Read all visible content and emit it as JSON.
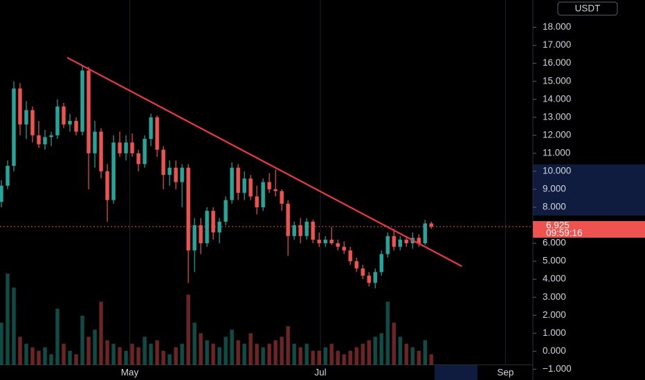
{
  "chart_data": {
    "type": "candlestick",
    "currency": "USDT",
    "up_color": "#26a69a",
    "down_color": "#ef5350",
    "open": [
      8.3,
      9.2,
      10.3,
      14.6,
      12.6,
      13.4,
      12.0,
      11.5,
      11.9,
      12.0,
      13.6,
      12.6,
      12.8,
      12.2,
      15.6,
      11.0,
      12.2,
      10.0,
      8.4,
      11.6,
      11.0,
      11.6,
      11.0,
      10.4,
      11.8,
      13.0,
      11.2,
      9.8,
      10.2,
      9.4,
      10.2,
      5.6,
      7.0,
      6.0,
      7.8,
      6.6,
      7.2,
      8.4,
      10.2,
      8.8,
      9.6,
      8.6,
      8.0,
      9.4,
      9.0,
      8.9,
      8.2,
      6.4,
      7.0,
      6.4,
      7.2,
      6.2,
      6.0,
      6.2,
      6.0,
      5.8,
      5.6,
      5.0,
      4.6,
      4.2,
      3.8,
      4.4,
      5.4,
      6.4,
      5.8,
      6.2,
      6.0,
      6.3,
      6.0,
      7.1
    ],
    "high": [
      9.5,
      10.6,
      15.0,
      14.9,
      13.9,
      13.6,
      12.8,
      12.3,
      12.2,
      14.0,
      13.8,
      13.2,
      13.0,
      15.9,
      15.8,
      12.8,
      12.4,
      10.4,
      12.0,
      12.2,
      12.0,
      12.1,
      11.2,
      12.0,
      13.2,
      13.1,
      11.4,
      10.6,
      10.6,
      10.4,
      10.4,
      7.4,
      7.4,
      8.0,
      8.0,
      7.4,
      8.6,
      10.5,
      10.4,
      10.0,
      9.8,
      9.2,
      9.6,
      9.9,
      10.1,
      9.0,
      8.4,
      7.2,
      7.4,
      7.4,
      7.3,
      6.6,
      6.4,
      6.9,
      6.2,
      6.1,
      5.8,
      5.2,
      4.8,
      4.4,
      4.6,
      5.6,
      6.6,
      6.8,
      6.4,
      6.4,
      6.6,
      6.5,
      7.3,
      7.2
    ],
    "low": [
      8.0,
      9.0,
      10.0,
      12.0,
      11.8,
      11.6,
      11.3,
      11.2,
      11.4,
      11.8,
      12.4,
      12.2,
      12.0,
      12.0,
      9.0,
      10.2,
      9.6,
      7.2,
      8.2,
      10.8,
      10.6,
      10.8,
      10.0,
      10.2,
      11.4,
      10.8,
      9.0,
      9.2,
      9.0,
      8.0,
      3.8,
      4.4,
      5.4,
      5.8,
      6.2,
      6.0,
      7.0,
      8.2,
      8.4,
      8.4,
      8.4,
      7.6,
      7.8,
      8.8,
      8.6,
      7.8,
      5.3,
      6.2,
      6.0,
      6.2,
      6.0,
      5.8,
      5.8,
      5.9,
      5.6,
      5.4,
      4.8,
      4.4,
      4.0,
      3.6,
      3.5,
      4.2,
      5.2,
      5.6,
      5.6,
      5.8,
      5.7,
      5.8,
      5.9,
      6.8
    ],
    "close": [
      9.2,
      10.3,
      14.6,
      12.6,
      13.4,
      12.0,
      11.5,
      11.9,
      12.0,
      13.6,
      12.6,
      12.8,
      12.2,
      15.6,
      11.0,
      12.2,
      10.0,
      8.4,
      11.6,
      11.0,
      11.6,
      11.0,
      10.4,
      11.8,
      13.0,
      11.2,
      9.8,
      10.2,
      9.4,
      10.2,
      5.6,
      7.0,
      6.0,
      7.8,
      6.6,
      7.2,
      8.4,
      10.2,
      8.8,
      9.6,
      8.6,
      8.0,
      9.4,
      9.0,
      8.9,
      8.2,
      6.4,
      7.0,
      6.4,
      7.2,
      6.2,
      6.0,
      6.2,
      6.0,
      5.8,
      5.6,
      5.0,
      4.6,
      4.2,
      3.8,
      4.4,
      5.4,
      6.4,
      5.8,
      6.2,
      6.0,
      6.3,
      6.0,
      7.1,
      6.925
    ],
    "volume": [
      60,
      130,
      110,
      40,
      30,
      25,
      20,
      25,
      15,
      80,
      30,
      20,
      15,
      70,
      40,
      50,
      90,
      35,
      30,
      25,
      20,
      30,
      25,
      40,
      30,
      35,
      20,
      15,
      25,
      30,
      100,
      60,
      45,
      35,
      30,
      25,
      40,
      50,
      35,
      30,
      45,
      30,
      25,
      30,
      35,
      40,
      55,
      30,
      25,
      30,
      20,
      20,
      25,
      30,
      20,
      15,
      20,
      25,
      30,
      35,
      40,
      45,
      90,
      60,
      40,
      30,
      25,
      20,
      35,
      15
    ],
    "xlim": [
      -0.22,
      85.3
    ],
    "xticks": [
      {
        "value": 20.6,
        "label": "May"
      },
      {
        "value": 51.2,
        "label": "Jul"
      },
      {
        "value": 80.9,
        "label": "Sep"
      }
    ],
    "ylim": [
      -1.6,
      19.52
    ],
    "yticks": [
      {
        "value": 18,
        "label": "18.000"
      },
      {
        "value": 17,
        "label": "17.000"
      },
      {
        "value": 16,
        "label": "16.000"
      },
      {
        "value": 15,
        "label": "15.000"
      },
      {
        "value": 14,
        "label": "14.000"
      },
      {
        "value": 13,
        "label": "13.000"
      },
      {
        "value": 12,
        "label": "12.000"
      },
      {
        "value": 11,
        "label": "11.000"
      },
      {
        "value": 10,
        "label": "10.000"
      },
      {
        "value": 9,
        "label": "9.000"
      },
      {
        "value": 8,
        "label": "8.000"
      },
      {
        "value": 6,
        "label": "6.000"
      },
      {
        "value": 5,
        "label": "5.000"
      },
      {
        "value": 4,
        "label": "4.000"
      },
      {
        "value": 3,
        "label": "3.000"
      },
      {
        "value": 2,
        "label": "2.000"
      },
      {
        "value": 1,
        "label": "1.000"
      },
      {
        "value": 0,
        "label": "0.000"
      },
      {
        "value": -1,
        "label": "−1.000"
      }
    ],
    "trendline": {
      "x": [
        10.56,
        73.9
      ],
      "y": [
        16.32,
        4.72
      ],
      "color": "#f23645"
    },
    "last_price": {
      "value": 6.925,
      "label": "6.925"
    },
    "countdown": "09:59:16"
  }
}
